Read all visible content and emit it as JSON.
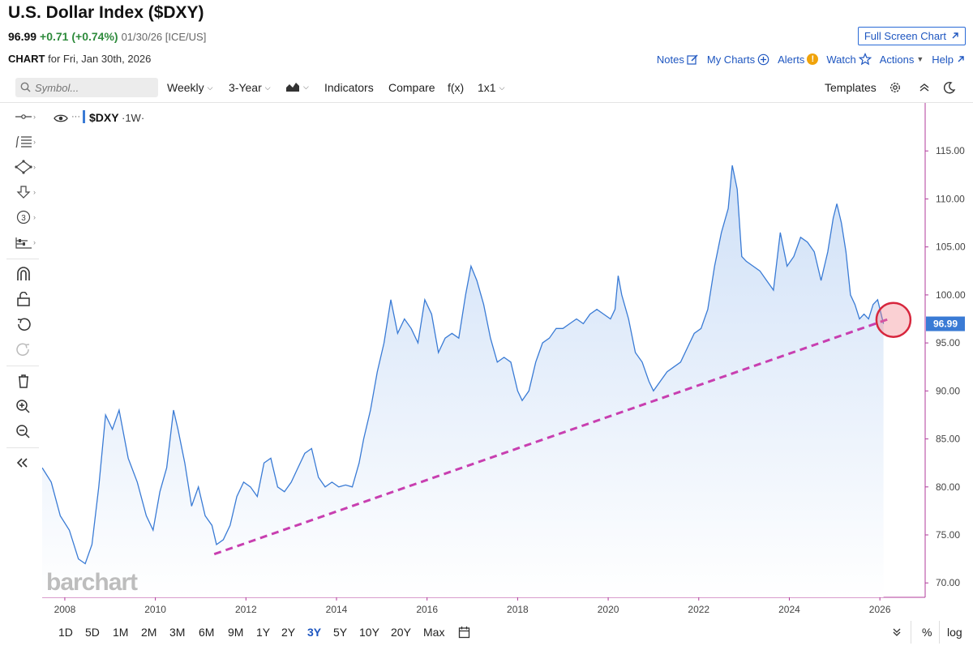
{
  "header": {
    "title": "U.S. Dollar Index ($DXY)",
    "price": "96.99",
    "change": "+0.71 (+0.74%)",
    "date_exchange": "01/30/26 [ICE/US]",
    "fullscreen_label": "Full Screen Chart",
    "chart_label": "CHART",
    "chart_for": "for Fri, Jan 30th, 2026"
  },
  "menu": {
    "notes": "Notes",
    "my_charts": "My Charts",
    "alerts": "Alerts",
    "alerts_badge": "!",
    "watch": "Watch",
    "actions": "Actions",
    "help": "Help"
  },
  "toolbar": {
    "search_placeholder": "Symbol...",
    "interval": "Weekly",
    "range": "3-Year",
    "indicators": "Indicators",
    "compare": "Compare",
    "fx": "f(x)",
    "layout": "1x1",
    "templates": "Templates"
  },
  "legend": {
    "symbol": "$DXY",
    "interval": "·1W·",
    "dots": "···"
  },
  "watermark": "barchart",
  "last_price_tag": "96.99",
  "colors": {
    "line": "#3a7bd5",
    "trend": "#c83fb0",
    "accent": "#1e56c0",
    "up": "#2e8b3c",
    "circle": "#d7263d"
  },
  "ranges": [
    "1D",
    "5D",
    "1M",
    "2M",
    "3M",
    "6M",
    "9M",
    "1Y",
    "2Y",
    "3Y",
    "5Y",
    "10Y",
    "20Y",
    "Max"
  ],
  "active_range": "3Y",
  "bottom_right": {
    "percent": "%",
    "log": "log"
  },
  "chart_data": {
    "type": "area",
    "title": "$DXY ·1W·",
    "xlabel": "",
    "ylabel": "",
    "ylim": [
      68.5,
      120
    ],
    "xlim": [
      2007.5,
      2027.0
    ],
    "xticks": [
      "2008",
      "2010",
      "2012",
      "2014",
      "2016",
      "2018",
      "2020",
      "2022",
      "2024",
      "2026"
    ],
    "yticks": [
      "115.00",
      "110.00",
      "105.00",
      "100.00",
      "95.00",
      "90.00",
      "85.00",
      "80.00",
      "75.00",
      "70.00"
    ],
    "series": [
      {
        "name": "$DXY",
        "x": [
          2007.5,
          2007.7,
          2007.9,
          2008.1,
          2008.3,
          2008.45,
          2008.6,
          2008.75,
          2008.9,
          2009.05,
          2009.2,
          2009.4,
          2009.6,
          2009.8,
          2009.95,
          2010.1,
          2010.25,
          2010.4,
          2010.5,
          2010.65,
          2010.8,
          2010.95,
          2011.1,
          2011.25,
          2011.35,
          2011.5,
          2011.65,
          2011.8,
          2011.95,
          2012.1,
          2012.25,
          2012.4,
          2012.55,
          2012.7,
          2012.85,
          2013.0,
          2013.15,
          2013.3,
          2013.45,
          2013.6,
          2013.75,
          2013.9,
          2014.05,
          2014.2,
          2014.35,
          2014.5,
          2014.6,
          2014.75,
          2014.9,
          2015.05,
          2015.2,
          2015.35,
          2015.5,
          2015.65,
          2015.8,
          2015.95,
          2016.1,
          2016.25,
          2016.4,
          2016.55,
          2016.7,
          2016.85,
          2016.97,
          2017.1,
          2017.25,
          2017.4,
          2017.55,
          2017.7,
          2017.85,
          2018.0,
          2018.1,
          2018.25,
          2018.4,
          2018.55,
          2018.7,
          2018.85,
          2019.0,
          2019.15,
          2019.3,
          2019.45,
          2019.6,
          2019.75,
          2019.9,
          2020.05,
          2020.15,
          2020.22,
          2020.3,
          2020.45,
          2020.6,
          2020.75,
          2020.9,
          2021.0,
          2021.15,
          2021.3,
          2021.45,
          2021.6,
          2021.75,
          2021.9,
          2022.05,
          2022.2,
          2022.35,
          2022.5,
          2022.65,
          2022.74,
          2022.85,
          2022.95,
          2023.05,
          2023.2,
          2023.35,
          2023.5,
          2023.65,
          2023.8,
          2023.95,
          2024.1,
          2024.25,
          2024.4,
          2024.55,
          2024.7,
          2024.85,
          2024.97,
          2025.05,
          2025.15,
          2025.25,
          2025.35,
          2025.45,
          2025.55,
          2025.65,
          2025.75,
          2025.85,
          2025.95,
          2026.08
        ],
        "values": [
          82.0,
          80.5,
          77.0,
          75.5,
          72.5,
          72.0,
          74.0,
          80.0,
          87.5,
          86.0,
          88.0,
          83.0,
          80.5,
          77.0,
          75.5,
          79.5,
          82.0,
          88.0,
          86.0,
          82.5,
          78.0,
          80.0,
          77.0,
          76.0,
          74.0,
          74.5,
          76.0,
          79.0,
          80.5,
          80.0,
          79.0,
          82.5,
          83.0,
          80.0,
          79.5,
          80.5,
          82.0,
          83.5,
          84.0,
          81.0,
          80.0,
          80.5,
          80.0,
          80.2,
          80.0,
          82.5,
          85.0,
          88.0,
          92.0,
          95.0,
          99.5,
          96.0,
          97.5,
          96.5,
          95.0,
          99.5,
          98.0,
          94.0,
          95.5,
          96.0,
          95.5,
          100.0,
          103.0,
          101.5,
          99.0,
          95.5,
          93.0,
          93.5,
          93.0,
          90.0,
          89.0,
          90.0,
          93.0,
          95.0,
          95.5,
          96.5,
          96.5,
          97.0,
          97.5,
          97.0,
          98.0,
          98.5,
          98.0,
          97.5,
          98.5,
          102.0,
          100.0,
          97.5,
          94.0,
          93.0,
          91.0,
          90.0,
          91.0,
          92.0,
          92.5,
          93.0,
          94.5,
          96.0,
          96.5,
          98.5,
          103.0,
          106.5,
          109.0,
          113.5,
          111.0,
          104.0,
          103.5,
          103.0,
          102.5,
          101.5,
          100.5,
          106.5,
          103.0,
          104.0,
          106.0,
          105.5,
          104.5,
          101.5,
          104.5,
          108.0,
          109.5,
          107.5,
          104.5,
          100.0,
          99.0,
          97.5,
          98.0,
          97.5,
          99.0,
          99.5,
          96.99
        ]
      },
      {
        "name": "Trendline",
        "x": [
          2011.3,
          2026.2
        ],
        "values": [
          73.0,
          97.5
        ]
      }
    ],
    "annotations": [
      "highlight circle at latest price"
    ]
  }
}
